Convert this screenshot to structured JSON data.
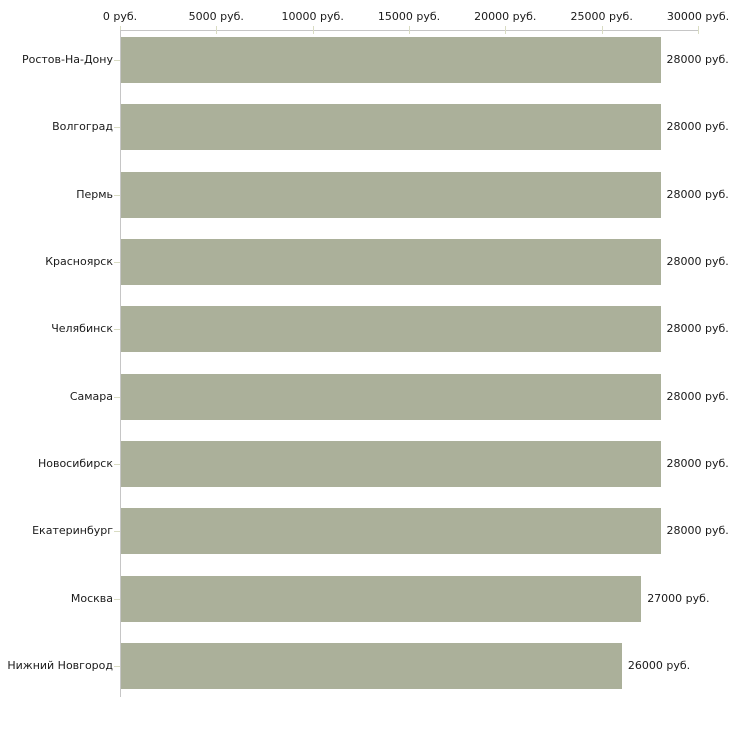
{
  "chart_data": {
    "type": "bar",
    "orientation": "horizontal",
    "title": "",
    "xlabel": "",
    "ylabel": "",
    "unit": "руб.",
    "categories": [
      "Ростов-На-Дону",
      "Волгоград",
      "Пермь",
      "Красноярск",
      "Челябинск",
      "Самара",
      "Новосибирск",
      "Екатеринбург",
      "Москва",
      "Нижний Новгород"
    ],
    "values": [
      28000,
      28000,
      28000,
      28000,
      28000,
      28000,
      28000,
      28000,
      27000,
      26000
    ],
    "value_labels": [
      "28000 руб.",
      "28000 руб.",
      "28000 руб.",
      "28000 руб.",
      "28000 руб.",
      "28000 руб.",
      "28000 руб.",
      "28000 руб.",
      "27000 руб.",
      "26000 руб."
    ],
    "x_axis": {
      "position": "top",
      "min": 0,
      "max": 30000,
      "tick_interval": 5000,
      "tick_values": [
        0,
        5000,
        10000,
        15000,
        20000,
        25000,
        30000
      ],
      "tick_labels": [
        "0 руб.",
        "5000 руб.",
        "10000 руб.",
        "15000 руб.",
        "20000 руб.",
        "25000 руб.",
        "30000 руб."
      ]
    },
    "grid": false,
    "legend": null,
    "colors": {
      "bar": "#abb09a",
      "axis_line": "#c6c6c6",
      "axis_tick": "#d9dcc3",
      "label_text": "#1a1a1a",
      "background": "#ffffff"
    }
  }
}
